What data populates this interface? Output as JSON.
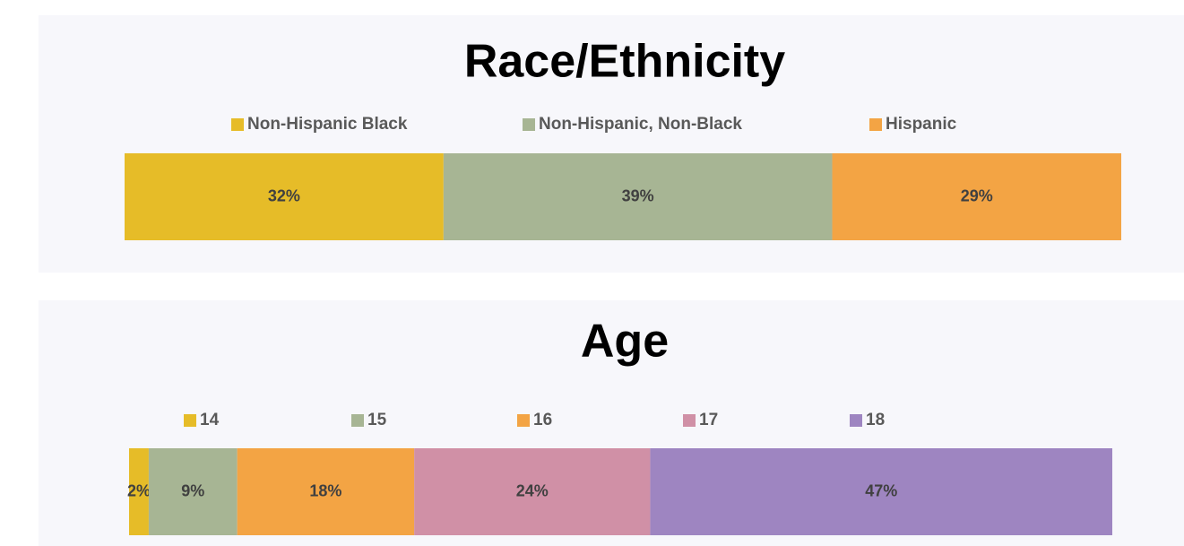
{
  "chart_data": [
    {
      "type": "stacked-bar",
      "title": "Race/Ethnicity",
      "xlim": [
        0,
        100
      ],
      "series": [
        {
          "name": "Non-Hispanic Black",
          "color": "#e6bc28",
          "values": [
            32
          ],
          "value_labels": [
            "32%"
          ]
        },
        {
          "name": "Non-Hispanic, Non-Black",
          "color": "#a7b594",
          "values": [
            39
          ],
          "value_labels": [
            "39%"
          ]
        },
        {
          "name": "Hispanic",
          "color": "#f3a444",
          "values": [
            29
          ],
          "value_labels": [
            "29%"
          ]
        }
      ]
    },
    {
      "type": "stacked-bar",
      "title": "Age",
      "xlim": [
        0,
        100
      ],
      "series": [
        {
          "name": "14",
          "color": "#e6bc28",
          "values": [
            2
          ],
          "value_labels": [
            "2%"
          ]
        },
        {
          "name": "15",
          "color": "#a7b594",
          "values": [
            9
          ],
          "value_labels": [
            "9%"
          ]
        },
        {
          "name": "16",
          "color": "#f3a444",
          "values": [
            18
          ],
          "value_labels": [
            "18%"
          ]
        },
        {
          "name": "17",
          "color": "#d090a6",
          "values": [
            24
          ],
          "value_labels": [
            "24%"
          ]
        },
        {
          "name": "18",
          "color": "#9e85c1",
          "values": [
            47
          ],
          "value_labels": [
            "47%"
          ]
        }
      ]
    }
  ]
}
